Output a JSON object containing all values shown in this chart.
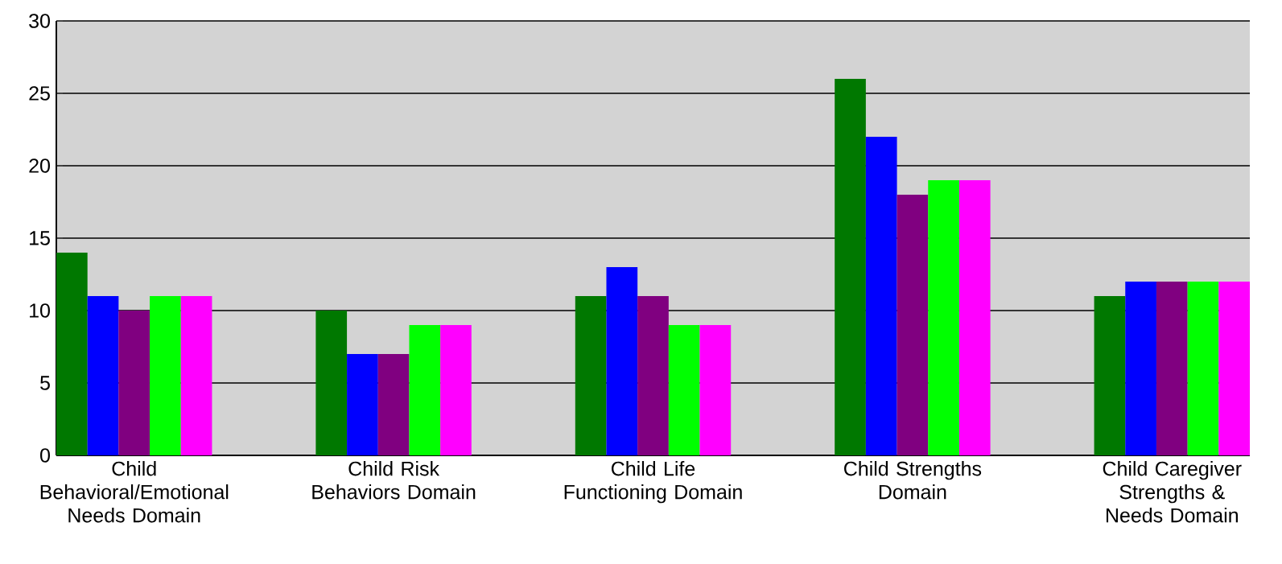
{
  "chart_data": {
    "type": "bar",
    "categories": [
      "Child Behavioral/Emotional Needs Domain",
      "Child Risk Behaviors Domain",
      "Child Life Functioning Domain",
      "Child Strengths Domain",
      "Child Caregiver Strengths & Needs Domain"
    ],
    "series": [
      {
        "color": "#007800",
        "values": [
          14,
          10,
          11,
          26,
          11
        ]
      },
      {
        "color": "#0000ff",
        "values": [
          11,
          7,
          13,
          22,
          12
        ]
      },
      {
        "color": "#800080",
        "values": [
          10,
          7,
          11,
          18,
          12
        ]
      },
      {
        "color": "#00ff00",
        "values": [
          11,
          9,
          9,
          19,
          12
        ]
      },
      {
        "color": "#ff00ff",
        "values": [
          11,
          9,
          9,
          19,
          12
        ]
      }
    ],
    "ylim": [
      0,
      30
    ],
    "yticks": [
      0,
      5,
      10,
      15,
      20,
      25,
      30
    ],
    "grid": "y"
  }
}
